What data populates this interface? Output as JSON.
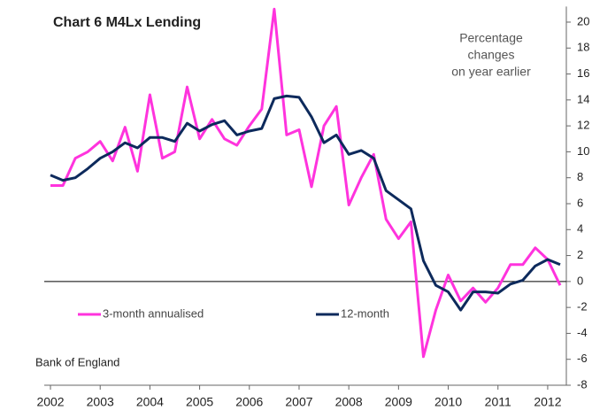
{
  "chart_data": {
    "type": "line",
    "title": "Chart 6 M4Lx  Lending",
    "annotation": [
      "Percentage",
      "changes",
      "on year earlier"
    ],
    "source": "Bank of England",
    "x": [
      2002,
      2002.25,
      2002.5,
      2002.75,
      2003,
      2003.25,
      2003.5,
      2003.75,
      2004,
      2004.25,
      2004.5,
      2004.75,
      2005,
      2005.25,
      2005.5,
      2005.75,
      2006,
      2006.25,
      2006.5,
      2006.75,
      2007,
      2007.25,
      2007.5,
      2007.75,
      2008,
      2008.25,
      2008.5,
      2008.75,
      2009,
      2009.25,
      2009.5,
      2009.75,
      2010,
      2010.25,
      2010.5,
      2010.75,
      2011,
      2011.25,
      2011.5,
      2011.75,
      2012,
      2012.25
    ],
    "series": [
      {
        "name": "3-month annualised",
        "color": "#ff33dd",
        "values": [
          7.4,
          7.4,
          9.5,
          10,
          10.8,
          9.3,
          11.9,
          8.5,
          14.4,
          9.5,
          10,
          15,
          11,
          12.5,
          11,
          10.5,
          12,
          13.3,
          21,
          11.3,
          11.7,
          7.3,
          12,
          13.5,
          5.9,
          8,
          9.8,
          4.8,
          3.3,
          4.6,
          -5.8,
          -2.2,
          0.5,
          -1.5,
          -0.5,
          -1.6,
          -0.5,
          1.3,
          1.3,
          2.6,
          1.7,
          -0.3
        ]
      },
      {
        "name": "12-month",
        "color": "#0d2a5c",
        "values": [
          8.2,
          7.8,
          8,
          8.7,
          9.5,
          10,
          10.7,
          10.3,
          11.1,
          11.1,
          10.8,
          12.2,
          11.6,
          12.1,
          12.4,
          11.3,
          11.6,
          11.8,
          14.1,
          14.3,
          14.2,
          12.7,
          10.7,
          11.3,
          9.8,
          10.1,
          9.5,
          7,
          6.3,
          5.6,
          1.6,
          -0.3,
          -0.8,
          -2.2,
          -0.8,
          -0.8,
          -0.9,
          -0.2,
          0.1,
          1.2,
          1.7,
          1.3
        ]
      }
    ],
    "xlim": [
      2001.875,
      2012.375
    ],
    "xticks": [
      2002,
      2003,
      2004,
      2005,
      2006,
      2007,
      2008,
      2009,
      2010,
      2011,
      2012
    ],
    "ylim": [
      -8,
      21.2
    ],
    "yticks": [
      -8,
      -6,
      -4,
      -2,
      0,
      2,
      4,
      6,
      8,
      10,
      12,
      14,
      16,
      18,
      20
    ]
  }
}
